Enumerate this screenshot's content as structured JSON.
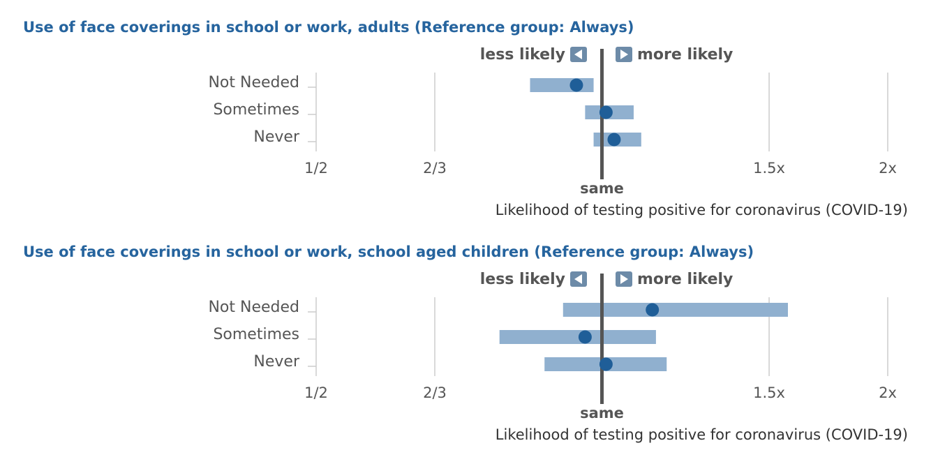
{
  "colors": {
    "title": "#26649e",
    "ci_bar": "#90b0cf",
    "point": "#1f5e98",
    "reference_line": "#555555",
    "grid": "#cccccc",
    "arrow_box": "#6d8ba8"
  },
  "direction": {
    "less": "less likely",
    "more": "more likely"
  },
  "chart_data": [
    {
      "type": "forest",
      "title": "Use of face coverings in school or work, adults (Reference group: Always)",
      "xlabel": "Likelihood of testing positive for coronavirus (COVID-19)",
      "x_scale": "log",
      "xlim": [
        0.5,
        2
      ],
      "x_ticks": [
        {
          "value": 0.5,
          "label": "1/2"
        },
        {
          "value": 0.6667,
          "label": "2/3"
        },
        {
          "value": 1,
          "label": "same"
        },
        {
          "value": 1.5,
          "label": "1.5x"
        },
        {
          "value": 2,
          "label": "2x"
        }
      ],
      "reference_value": 1,
      "categories": [
        "Not Needed",
        "Sometimes",
        "Never"
      ],
      "estimates": [
        0.94,
        1.01,
        1.03
      ],
      "ci_lower": [
        0.84,
        0.96,
        0.98
      ],
      "ci_upper": [
        0.98,
        1.08,
        1.1
      ]
    },
    {
      "type": "forest",
      "title": "Use of face coverings in school or work, school aged children (Reference group: Always)",
      "xlabel": "Likelihood of testing positive for coronavirus (COVID-19)",
      "x_scale": "log",
      "xlim": [
        0.5,
        2
      ],
      "x_ticks": [
        {
          "value": 0.5,
          "label": "1/2"
        },
        {
          "value": 0.6667,
          "label": "2/3"
        },
        {
          "value": 1,
          "label": "same"
        },
        {
          "value": 1.5,
          "label": "1.5x"
        },
        {
          "value": 2,
          "label": "2x"
        }
      ],
      "reference_value": 1,
      "categories": [
        "Not Needed",
        "Sometimes",
        "Never"
      ],
      "estimates": [
        1.13,
        0.96,
        1.01
      ],
      "ci_lower": [
        0.91,
        0.78,
        0.87
      ],
      "ci_upper": [
        1.57,
        1.14,
        1.17
      ]
    }
  ]
}
